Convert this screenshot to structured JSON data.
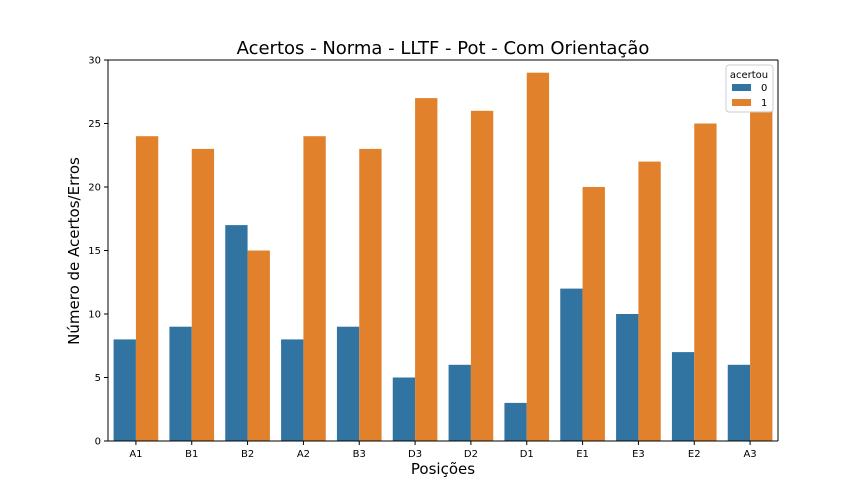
{
  "chart_data": {
    "type": "bar",
    "title": "Acertos - Norma - LLTF - Pot - Com Orientação",
    "xlabel": "Posições",
    "ylabel": "Número de Acertos/Erros",
    "ylim": [
      0,
      30
    ],
    "yticks": [
      0,
      5,
      10,
      15,
      20,
      25,
      30
    ],
    "grid": false,
    "legend": {
      "title": "acertou",
      "placement": "top-right"
    },
    "categories": [
      "A1",
      "B1",
      "B2",
      "A2",
      "B3",
      "D3",
      "D2",
      "D1",
      "E1",
      "E3",
      "E2",
      "A3"
    ],
    "series": [
      {
        "name": "0",
        "color": "#3274a1",
        "values": [
          8,
          9,
          17,
          8,
          9,
          5,
          6,
          3,
          12,
          10,
          7,
          6
        ]
      },
      {
        "name": "1",
        "color": "#e1812c",
        "values": [
          24,
          23,
          15,
          24,
          23,
          27,
          26,
          29,
          20,
          22,
          25,
          26
        ]
      }
    ]
  }
}
